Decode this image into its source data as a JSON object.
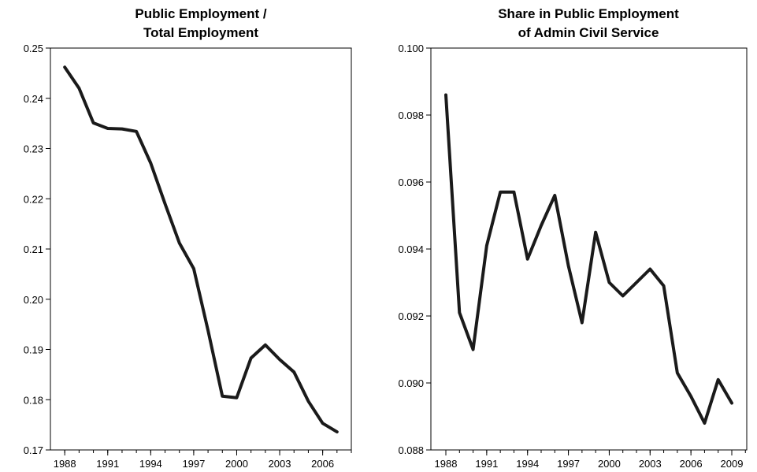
{
  "chart_data": [
    {
      "type": "line",
      "title_lines": [
        "Public Employment /",
        "Total Employment"
      ],
      "xlabel": "",
      "ylabel": "",
      "xlim": [
        1987,
        2008
      ],
      "ylim": [
        0.17,
        0.25
      ],
      "x_ticks": [
        "1988",
        "1991",
        "1994",
        "1997",
        "2000",
        "2003",
        "2006"
      ],
      "y_ticks": [
        "0.25",
        "0.24",
        "0.23",
        "0.22",
        "0.21",
        "0.20",
        "0.19",
        "0.18",
        "0.17"
      ],
      "grid": false,
      "series": [
        {
          "x": [
            1988,
            1989,
            1990,
            1991,
            1992,
            1993,
            1994,
            1995,
            1996,
            1997,
            1998,
            1999,
            2000,
            2001,
            2002,
            2003,
            2004,
            2005,
            2006,
            2007
          ],
          "values": [
            0.2462,
            0.242,
            0.2351,
            0.234,
            0.2339,
            0.2334,
            0.2271,
            0.219,
            0.2112,
            0.2061,
            0.1938,
            0.1807,
            0.1804,
            0.1883,
            0.1909,
            0.188,
            0.1855,
            0.1797,
            0.1753,
            0.1736
          ]
        }
      ]
    },
    {
      "type": "line",
      "title_lines": [
        "Share in Public Employment",
        "of Admin Civil Service"
      ],
      "xlabel": "",
      "ylabel": "",
      "xlim": [
        1986.9,
        2010.1
      ],
      "ylim": [
        0.088,
        0.1
      ],
      "x_ticks": [
        "1988",
        "1991",
        "1994",
        "1997",
        "2000",
        "2003",
        "2006",
        "2009"
      ],
      "y_ticks": [
        "0.100",
        "0.098",
        "0.096",
        "0.094",
        "0.092",
        "0.090",
        "0.088"
      ],
      "grid": false,
      "series": [
        {
          "x": [
            1988,
            1989,
            1990,
            1991,
            1992,
            1993,
            1994,
            1995,
            1996,
            1997,
            1998,
            1999,
            2000,
            2001,
            2002,
            2003,
            2004,
            2005,
            2006,
            2007,
            2008,
            2009
          ],
          "values": [
            0.0986,
            0.0921,
            0.091,
            0.0941,
            0.0957,
            0.0957,
            0.0937,
            0.0947,
            0.0956,
            0.0935,
            0.0918,
            0.0945,
            0.093,
            0.0926,
            0.093,
            0.0934,
            0.0929,
            0.0903,
            0.0896,
            0.0888,
            0.0901,
            0.0894
          ]
        }
      ]
    }
  ]
}
